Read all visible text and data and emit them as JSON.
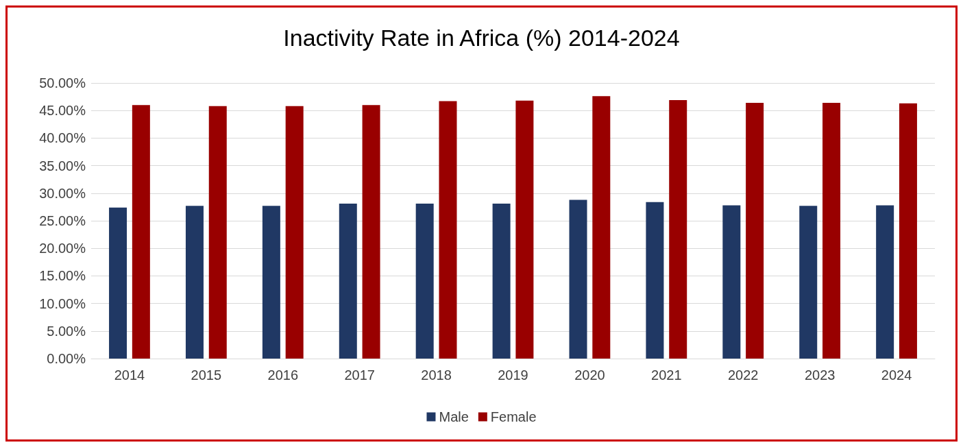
{
  "chart_data": {
    "type": "bar",
    "title": "Inactivity Rate in Africa (%) 2014-2024",
    "categories": [
      "2014",
      "2015",
      "2016",
      "2017",
      "2018",
      "2019",
      "2020",
      "2021",
      "2022",
      "2023",
      "2024"
    ],
    "series": [
      {
        "name": "Male",
        "color": "#203864",
        "values": [
          27.4,
          27.7,
          27.7,
          28.1,
          28.1,
          28.1,
          28.8,
          28.4,
          27.8,
          27.7,
          27.8
        ]
      },
      {
        "name": "Female",
        "color": "#990000",
        "values": [
          46.0,
          45.8,
          45.8,
          46.0,
          46.7,
          46.8,
          47.6,
          46.9,
          46.4,
          46.4,
          46.3
        ]
      }
    ],
    "ylim": [
      0,
      50
    ],
    "yticks": [
      {
        "value": 0,
        "label": "0.00%"
      },
      {
        "value": 5,
        "label": "5.00%"
      },
      {
        "value": 10,
        "label": "10.00%"
      },
      {
        "value": 15,
        "label": "15.00%"
      },
      {
        "value": 20,
        "label": "20.00%"
      },
      {
        "value": 25,
        "label": "25.00%"
      },
      {
        "value": 30,
        "label": "30.00%"
      },
      {
        "value": 35,
        "label": "35.00%"
      },
      {
        "value": 40,
        "label": "40.00%"
      },
      {
        "value": 45,
        "label": "45.00%"
      },
      {
        "value": 50,
        "label": "50.00%"
      }
    ],
    "grid": "y",
    "legend": "bottom"
  }
}
